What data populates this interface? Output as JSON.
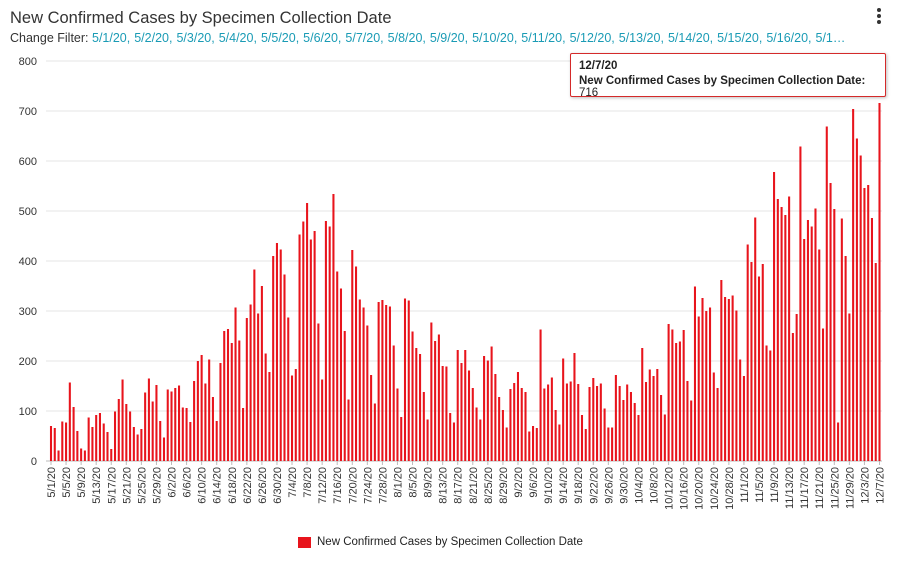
{
  "title": "New Confirmed Cases by Specimen Collection Date",
  "filter": {
    "label": "Change Filter:",
    "dates": [
      "5/1/20",
      "5/2/20",
      "5/3/20",
      "5/4/20",
      "5/5/20",
      "5/6/20",
      "5/7/20",
      "5/8/20",
      "5/9/20",
      "5/10/20",
      "5/11/20",
      "5/12/20",
      "5/13/20",
      "5/14/20",
      "5/15/20",
      "5/16/20"
    ],
    "more": "5/1…"
  },
  "tooltip": {
    "date": "12/7/20",
    "label": "New Confirmed Cases by Specimen Collection Date:",
    "value": "716"
  },
  "legend": {
    "label": "New Confirmed Cases by Specimen Collection Date"
  },
  "colors": {
    "bar": "#e8141c",
    "accent": "#1a9bb5",
    "tooltip_border": "#d42a2a"
  },
  "chart_data": {
    "type": "bar",
    "title": "New Confirmed Cases by Specimen Collection Date",
    "series_name": "New Confirmed Cases by Specimen Collection Date",
    "start_date": "5/1/20",
    "end_date": "12/7/20",
    "ylim": [
      0,
      800
    ],
    "yticks": [
      0,
      100,
      200,
      300,
      400,
      500,
      600,
      700,
      800
    ],
    "xtick_labels": [
      "5/1/20",
      "5/5/20",
      "5/9/20",
      "5/13/20",
      "5/17/20",
      "5/21/20",
      "5/25/20",
      "5/29/20",
      "6/2/20",
      "6/6/20",
      "6/10/20",
      "6/14/20",
      "6/18/20",
      "6/22/20",
      "6/26/20",
      "6/30/20",
      "7/4/20",
      "7/8/20",
      "7/12/20",
      "7/16/20",
      "7/20/20",
      "7/24/20",
      "7/28/20",
      "8/1/20",
      "8/5/20",
      "8/9/20",
      "8/13/20",
      "8/17/20",
      "8/21/20",
      "8/25/20",
      "8/29/20",
      "9/2/20",
      "9/6/20",
      "9/10/20",
      "9/14/20",
      "9/18/20",
      "9/22/20",
      "9/26/20",
      "9/30/20",
      "10/4/20",
      "10/8/20",
      "10/12/20",
      "10/16/20",
      "10/20/20",
      "10/24/20",
      "10/28/20",
      "11/1/20",
      "11/5/20",
      "11/9/20",
      "11/13/20",
      "11/17/20",
      "11/21/20",
      "11/25/20",
      "11/29/20",
      "12/3/20",
      "12/7/20"
    ],
    "values": [
      70,
      66,
      21,
      79,
      77,
      157,
      108,
      60,
      25,
      21,
      87,
      68,
      92,
      96,
      75,
      58,
      24,
      99,
      124,
      163,
      114,
      99,
      68,
      53,
      64,
      137,
      165,
      119,
      152,
      80,
      47,
      143,
      139,
      146,
      151,
      107,
      106,
      78,
      160,
      200,
      212,
      155,
      203,
      128,
      80,
      196,
      260,
      264,
      236,
      307,
      241,
      106,
      286,
      313,
      383,
      295,
      350,
      215,
      178,
      410,
      436,
      423,
      373,
      287,
      171,
      184,
      453,
      479,
      516,
      443,
      460,
      275,
      163,
      480,
      469,
      534,
      379,
      345,
      260,
      123,
      422,
      389,
      323,
      307,
      271,
      172,
      115,
      318,
      322,
      312,
      309,
      231,
      145,
      88,
      325,
      321,
      259,
      226,
      214,
      138,
      83,
      277,
      240,
      253,
      190,
      189,
      96,
      77,
      222,
      196,
      222,
      181,
      146,
      107,
      83,
      210,
      201,
      229,
      174,
      128,
      102,
      67,
      144,
      156,
      178,
      146,
      138,
      59,
      70,
      66,
      263,
      145,
      153,
      167,
      102,
      73,
      205,
      155,
      159,
      216,
      154,
      92,
      64,
      148,
      166,
      150,
      155,
      105,
      67,
      67,
      172,
      150,
      122,
      153,
      138,
      116,
      92,
      226,
      158,
      183,
      170,
      184,
      132,
      93,
      274,
      263,
      236,
      239,
      262,
      160,
      121,
      349,
      289,
      326,
      300,
      307,
      177,
      146,
      362,
      328,
      324,
      331,
      301,
      203,
      170,
      433,
      398,
      487,
      369,
      394,
      231,
      221,
      578,
      524,
      508,
      492,
      529,
      256,
      294,
      629,
      444,
      482,
      469,
      505,
      423,
      265,
      669,
      556,
      504,
      77,
      485,
      410,
      295,
      704,
      645,
      611,
      546,
      552,
      486,
      396,
      716
    ]
  }
}
